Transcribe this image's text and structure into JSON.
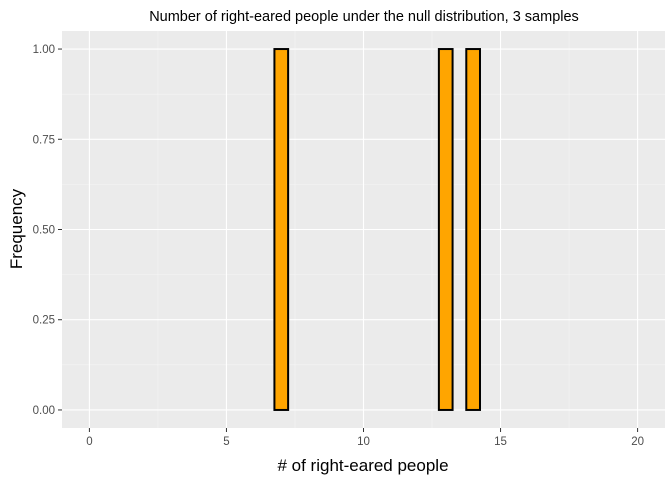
{
  "chart_data": {
    "type": "bar",
    "title": "Number of right-eared people under the null distribution, 3 samples",
    "xlabel": "# of right-eared people",
    "ylabel": "Frequency",
    "x": [
      7,
      13,
      14
    ],
    "values": [
      1,
      1,
      1
    ],
    "bar_width": 0.5,
    "xlim": [
      -1,
      21
    ],
    "ylim": [
      -0.05,
      1.05
    ],
    "x_ticks": [
      0,
      5,
      10,
      15,
      20
    ],
    "x_tick_labels": [
      "0",
      "5",
      "10",
      "15",
      "20"
    ],
    "y_ticks": [
      0,
      0.25,
      0.5,
      0.75,
      1.0
    ],
    "y_tick_labels": [
      "0.00",
      "0.25",
      "0.50",
      "0.75",
      "1.00"
    ],
    "grid": true,
    "legend": "none",
    "colors": {
      "bar_fill": "#FFA500",
      "bar_stroke": "#000000",
      "panel_background": "#EBEBEB",
      "grid_major": "#FFFFFF",
      "grid_minor": "#F5F5F5",
      "tick_text": "#4D4D4D"
    }
  }
}
